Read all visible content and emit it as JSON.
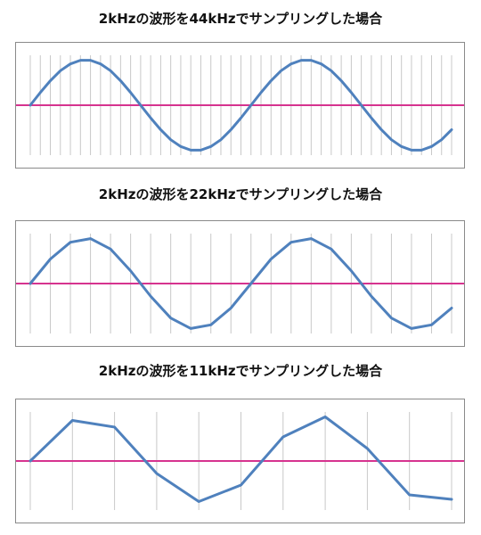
{
  "panels": [
    {
      "title": "2kHzの波形を44kHzでサンプリングした場合",
      "sample_rate_khz": 44
    },
    {
      "title": "2kHzの波形を22kHzでサンプリングした場合",
      "sample_rate_khz": 22
    },
    {
      "title": "2kHzの波形を11kHzでサンプリングした場合",
      "sample_rate_khz": 11
    }
  ],
  "chart_data": [
    {
      "type": "line",
      "signal_frequency_khz": 2,
      "sample_rate_khz": 44,
      "series": [
        {
          "values": [
            0,
            0.28,
            0.54,
            0.76,
            0.91,
            0.99,
            0.99,
            0.91,
            0.76,
            0.54,
            0.28,
            0,
            -0.28,
            -0.54,
            -0.76,
            -0.91,
            -0.99,
            -0.99,
            -0.91,
            -0.76,
            -0.54,
            -0.28,
            0,
            0.28,
            0.54,
            0.76,
            0.91,
            0.99,
            0.99,
            0.91,
            0.76,
            0.54,
            0.28,
            0,
            -0.28,
            -0.54,
            -0.76,
            -0.91,
            -0.99,
            -0.99,
            -0.91,
            -0.76,
            -0.54
          ]
        }
      ],
      "ylim": [
        -1.1,
        1.1
      ],
      "colors": {
        "waveform": "#4f81bd",
        "zero_line": "#d6338f",
        "sample_lines": "#c8c8c8",
        "frame": "#8a8a8a"
      }
    },
    {
      "type": "line",
      "signal_frequency_khz": 2,
      "sample_rate_khz": 22,
      "series": [
        {
          "values": [
            0,
            0.54,
            0.91,
            0.99,
            0.76,
            0.28,
            -0.28,
            -0.76,
            -0.99,
            -0.91,
            -0.54,
            0,
            0.54,
            0.91,
            0.99,
            0.76,
            0.28,
            -0.28,
            -0.76,
            -0.99,
            -0.91,
            -0.54
          ]
        }
      ],
      "ylim": [
        -1.1,
        1.1
      ],
      "colors": {
        "waveform": "#4f81bd",
        "zero_line": "#d6338f",
        "sample_lines": "#c8c8c8",
        "frame": "#8a8a8a"
      }
    },
    {
      "type": "line",
      "signal_frequency_khz": 2,
      "sample_rate_khz": 11,
      "series": [
        {
          "values": [
            0,
            0.91,
            0.76,
            -0.28,
            -0.91,
            -0.54,
            0.54,
            0.99,
            0.28,
            -0.76,
            -0.86
          ]
        }
      ],
      "ylim": [
        -1.1,
        1.1
      ],
      "colors": {
        "waveform": "#4f81bd",
        "zero_line": "#d6338f",
        "sample_lines": "#c8c8c8",
        "frame": "#8a8a8a"
      }
    }
  ]
}
